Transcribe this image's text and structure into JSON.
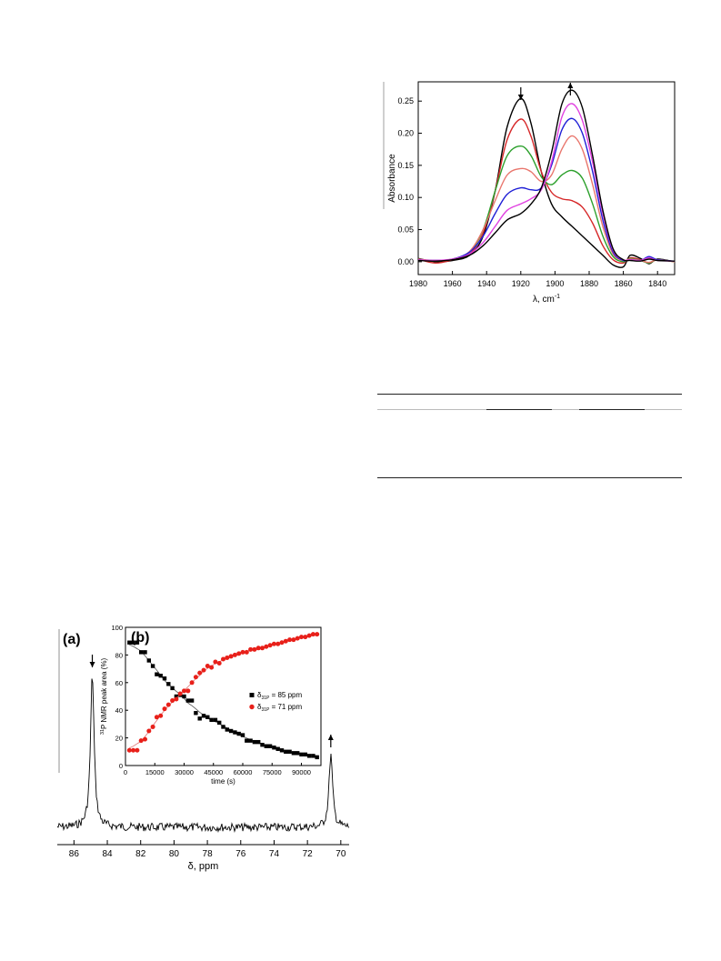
{
  "ir_chart": {
    "type": "line",
    "xlabel": "λ, cm",
    "xlabel_sup": "-1",
    "ylabel": "Absorbance",
    "xlim": [
      1980,
      1830
    ],
    "ylim": [
      -0.02,
      0.28
    ],
    "xticks": [
      1980,
      1960,
      1940,
      1920,
      1900,
      1880,
      1860,
      1840
    ],
    "yticks": [
      0.0,
      0.05,
      0.1,
      0.15,
      0.2,
      0.25
    ],
    "ytick_labels": [
      "0.00",
      "0.05",
      "0.10",
      "0.15",
      "0.20",
      "0.25"
    ],
    "arrows": [
      {
        "x": 1920,
        "direction": "down"
      },
      {
        "x": 1891,
        "direction": "up"
      }
    ],
    "series": [
      {
        "color": "#000000",
        "values": [
          [
            1980,
            0.005
          ],
          [
            1970,
            0.0
          ],
          [
            1960,
            0.002
          ],
          [
            1950,
            0.01
          ],
          [
            1942,
            0.04
          ],
          [
            1935,
            0.11
          ],
          [
            1928,
            0.21
          ],
          [
            1920,
            0.254
          ],
          [
            1914,
            0.215
          ],
          [
            1908,
            0.14
          ],
          [
            1902,
            0.09
          ],
          [
            1896,
            0.07
          ],
          [
            1890,
            0.055
          ],
          [
            1884,
            0.04
          ],
          [
            1878,
            0.025
          ],
          [
            1872,
            0.01
          ],
          [
            1866,
            -0.005
          ],
          [
            1860,
            -0.008
          ],
          [
            1856,
            0.01
          ],
          [
            1850,
            0.005
          ],
          [
            1845,
            -0.003
          ],
          [
            1840,
            0.004
          ],
          [
            1830,
            0.0
          ]
        ]
      },
      {
        "color": "#d62728",
        "values": [
          [
            1980,
            0.004
          ],
          [
            1970,
            -0.002
          ],
          [
            1960,
            0.003
          ],
          [
            1950,
            0.012
          ],
          [
            1942,
            0.045
          ],
          [
            1935,
            0.11
          ],
          [
            1928,
            0.19
          ],
          [
            1920,
            0.222
          ],
          [
            1914,
            0.195
          ],
          [
            1908,
            0.14
          ],
          [
            1902,
            0.108
          ],
          [
            1896,
            0.098
          ],
          [
            1890,
            0.095
          ],
          [
            1884,
            0.085
          ],
          [
            1878,
            0.06
          ],
          [
            1872,
            0.025
          ],
          [
            1866,
            0.003
          ],
          [
            1860,
            -0.002
          ],
          [
            1856,
            0.006
          ],
          [
            1850,
            0.003
          ],
          [
            1845,
            -0.002
          ],
          [
            1840,
            0.003
          ],
          [
            1830,
            0.0
          ]
        ]
      },
      {
        "color": "#2ca02c",
        "values": [
          [
            1980,
            0.003
          ],
          [
            1970,
            0.001
          ],
          [
            1960,
            0.004
          ],
          [
            1950,
            0.015
          ],
          [
            1942,
            0.05
          ],
          [
            1935,
            0.11
          ],
          [
            1928,
            0.165
          ],
          [
            1920,
            0.18
          ],
          [
            1914,
            0.165
          ],
          [
            1908,
            0.132
          ],
          [
            1902,
            0.12
          ],
          [
            1896,
            0.135
          ],
          [
            1890,
            0.142
          ],
          [
            1884,
            0.13
          ],
          [
            1878,
            0.09
          ],
          [
            1872,
            0.04
          ],
          [
            1866,
            0.008
          ],
          [
            1860,
            0.0
          ],
          [
            1856,
            0.005
          ],
          [
            1850,
            0.002
          ],
          [
            1845,
            -0.002
          ],
          [
            1840,
            0.003
          ],
          [
            1830,
            0.0
          ]
        ]
      },
      {
        "color": "#e9766d",
        "values": [
          [
            1980,
            0.004
          ],
          [
            1970,
            0.002
          ],
          [
            1960,
            0.004
          ],
          [
            1950,
            0.016
          ],
          [
            1942,
            0.05
          ],
          [
            1935,
            0.095
          ],
          [
            1928,
            0.135
          ],
          [
            1920,
            0.145
          ],
          [
            1914,
            0.14
          ],
          [
            1908,
            0.125
          ],
          [
            1902,
            0.135
          ],
          [
            1896,
            0.175
          ],
          [
            1890,
            0.196
          ],
          [
            1884,
            0.175
          ],
          [
            1878,
            0.12
          ],
          [
            1872,
            0.055
          ],
          [
            1866,
            0.012
          ],
          [
            1860,
            0.002
          ],
          [
            1856,
            0.004
          ],
          [
            1850,
            0.002
          ],
          [
            1845,
            -0.001
          ],
          [
            1840,
            0.003
          ],
          [
            1830,
            0.0
          ]
        ]
      },
      {
        "color": "#1f1fd6",
        "values": [
          [
            1980,
            0.003
          ],
          [
            1970,
            0.002
          ],
          [
            1960,
            0.004
          ],
          [
            1950,
            0.015
          ],
          [
            1942,
            0.04
          ],
          [
            1935,
            0.075
          ],
          [
            1928,
            0.105
          ],
          [
            1920,
            0.115
          ],
          [
            1914,
            0.112
          ],
          [
            1908,
            0.115
          ],
          [
            1902,
            0.15
          ],
          [
            1896,
            0.205
          ],
          [
            1890,
            0.223
          ],
          [
            1884,
            0.2
          ],
          [
            1878,
            0.14
          ],
          [
            1872,
            0.065
          ],
          [
            1866,
            0.015
          ],
          [
            1860,
            0.002
          ],
          [
            1856,
            0.003
          ],
          [
            1850,
            0.002
          ],
          [
            1845,
            0.008
          ],
          [
            1840,
            0.003
          ],
          [
            1830,
            0.001
          ]
        ]
      },
      {
        "color": "#e040e0",
        "values": [
          [
            1980,
            0.003
          ],
          [
            1970,
            0.002
          ],
          [
            1960,
            0.004
          ],
          [
            1950,
            0.012
          ],
          [
            1942,
            0.03
          ],
          [
            1935,
            0.055
          ],
          [
            1928,
            0.08
          ],
          [
            1920,
            0.09
          ],
          [
            1914,
            0.098
          ],
          [
            1908,
            0.112
          ],
          [
            1902,
            0.155
          ],
          [
            1896,
            0.225
          ],
          [
            1890,
            0.246
          ],
          [
            1884,
            0.22
          ],
          [
            1878,
            0.155
          ],
          [
            1872,
            0.075
          ],
          [
            1866,
            0.018
          ],
          [
            1860,
            0.003
          ],
          [
            1856,
            0.003
          ],
          [
            1850,
            0.002
          ],
          [
            1845,
            0.006
          ],
          [
            1840,
            0.002
          ],
          [
            1830,
            0.001
          ]
        ]
      },
      {
        "color": "#000000",
        "values": [
          [
            1980,
            0.002
          ],
          [
            1970,
            0.001
          ],
          [
            1960,
            0.003
          ],
          [
            1950,
            0.01
          ],
          [
            1942,
            0.025
          ],
          [
            1935,
            0.045
          ],
          [
            1928,
            0.065
          ],
          [
            1920,
            0.075
          ],
          [
            1914,
            0.09
          ],
          [
            1908,
            0.115
          ],
          [
            1902,
            0.17
          ],
          [
            1896,
            0.245
          ],
          [
            1890,
            0.267
          ],
          [
            1884,
            0.24
          ],
          [
            1878,
            0.165
          ],
          [
            1872,
            0.08
          ],
          [
            1866,
            0.02
          ],
          [
            1860,
            0.003
          ],
          [
            1856,
            0.002
          ],
          [
            1850,
            0.001
          ],
          [
            1845,
            0.004
          ],
          [
            1840,
            0.002
          ],
          [
            1830,
            0.001
          ]
        ]
      }
    ]
  },
  "nmr_chart": {
    "type": "line",
    "panel_label": "(a)",
    "xlabel": "δ, ppm",
    "xlim": [
      87,
      69.5
    ],
    "xticks": [
      86,
      84,
      82,
      80,
      78,
      76,
      74,
      72,
      70
    ],
    "peaks": [
      {
        "x": 84.9,
        "height": 0.84,
        "arrow": "down"
      },
      {
        "x": 70.6,
        "height": 0.4,
        "arrow": "up"
      }
    ]
  },
  "kinetic_chart": {
    "type": "scatter",
    "panel_label": "(b)",
    "xlabel": "time (s)",
    "ylabel_sup": "31",
    "ylabel": "P NMR peak area (%)",
    "xlim": [
      0,
      100000
    ],
    "ylim": [
      0,
      100
    ],
    "xticks": [
      0,
      15000,
      30000,
      45000,
      60000,
      75000,
      90000
    ],
    "yticks": [
      0,
      20,
      40,
      60,
      80,
      100
    ],
    "series": [
      {
        "label_prefix": "δ",
        "label_sub": "31P",
        "label_value": " = 85 ppm",
        "color": "#000000",
        "marker": "square",
        "x": [
          2000,
          4000,
          6000,
          8000,
          10000,
          12000,
          14000,
          16000,
          18000,
          20000,
          22000,
          24000,
          26000,
          28000,
          30000,
          32000,
          34000,
          36000,
          38000,
          40000,
          42000,
          44000,
          46000,
          48000,
          50000,
          52000,
          54000,
          56000,
          58000,
          60000,
          62000,
          64000,
          66000,
          68000,
          70000,
          72000,
          74000,
          76000,
          78000,
          80000,
          82000,
          84000,
          86000,
          88000,
          90000,
          92000,
          94000,
          96000,
          98000
        ],
        "y": [
          89,
          89,
          89,
          82,
          82,
          76,
          72,
          66,
          65,
          63,
          59,
          56,
          50,
          51,
          50,
          47,
          47,
          38,
          34,
          36,
          35,
          33,
          33,
          31,
          28,
          26,
          25,
          24,
          23,
          22,
          18,
          18,
          17,
          17,
          15,
          14,
          14,
          13,
          12,
          11,
          10,
          10,
          9,
          9,
          8,
          8,
          7,
          7,
          6
        ]
      },
      {
        "label_prefix": "δ",
        "label_sub": "31P",
        "label_value": " = 71 ppm",
        "color": "#e8201a",
        "marker": "circle",
        "x": [
          2000,
          4000,
          6000,
          8000,
          10000,
          12000,
          14000,
          16000,
          18000,
          20000,
          22000,
          24000,
          26000,
          28000,
          30000,
          32000,
          34000,
          36000,
          38000,
          40000,
          42000,
          44000,
          46000,
          48000,
          50000,
          52000,
          54000,
          56000,
          58000,
          60000,
          62000,
          64000,
          66000,
          68000,
          70000,
          72000,
          74000,
          76000,
          78000,
          80000,
          82000,
          84000,
          86000,
          88000,
          90000,
          92000,
          94000,
          96000,
          98000
        ],
        "y": [
          11,
          11,
          11,
          18,
          19,
          25,
          28,
          35,
          36,
          41,
          44,
          47,
          48,
          52,
          54,
          54,
          60,
          64,
          67,
          69,
          72,
          71,
          75,
          74,
          77,
          78,
          79,
          80,
          81,
          82,
          82,
          84,
          84,
          85,
          85,
          86,
          87,
          88,
          88,
          89,
          90,
          91,
          91,
          92,
          93,
          93,
          94,
          95,
          95
        ]
      }
    ]
  }
}
